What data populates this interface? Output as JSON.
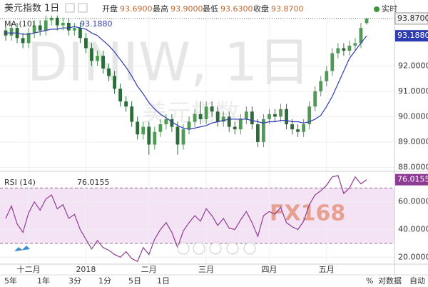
{
  "header": {
    "title": "美元指数",
    "interval": "1日",
    "open_label": "开盘",
    "open": "93.6900",
    "high_label": "最高",
    "high": "93.9000",
    "low_label": "最低",
    "low": "93.6300",
    "close_label": "收盘",
    "close": "93.8700",
    "realtime": "实时"
  },
  "watermark": {
    "symbol": "DINIW, 1日",
    "name": "美元指数",
    "logo": "FX168"
  },
  "chart_data": [
    {
      "type": "candlestick",
      "categories": [
        null,
        null,
        null,
        null,
        "十二月",
        null,
        null,
        null,
        null,
        null,
        null,
        null,
        null,
        null,
        "2018",
        null,
        null,
        null,
        null,
        null,
        null,
        null,
        null,
        null,
        null,
        "二月",
        null,
        null,
        null,
        null,
        null,
        null,
        null,
        null,
        null,
        "三月",
        null,
        null,
        null,
        null,
        null,
        null,
        null,
        null,
        null,
        null,
        "四月",
        null,
        null,
        null,
        null,
        null,
        null,
        null,
        null,
        null,
        "五月",
        null,
        null,
        null,
        null,
        null,
        null,
        null
      ],
      "open": [
        93.4,
        93.2,
        93.5,
        93.1,
        92.9,
        93.3,
        93.6,
        93.4,
        93.8,
        93.9,
        93.6,
        93.7,
        93.4,
        93.5,
        93.1,
        92.7,
        92.2,
        92.4,
        91.9,
        91.6,
        91.1,
        90.6,
        90.4,
        89.8,
        89.3,
        89.6,
        88.9,
        89.4,
        89.7,
        89.9,
        89.6,
        88.9,
        89.5,
        89.8,
        90.1,
        89.9,
        90.4,
        90.2,
        89.8,
        90.0,
        89.6,
        89.5,
        89.9,
        90.2,
        89.7,
        89.0,
        89.9,
        90.1,
        90.0,
        90.3,
        89.7,
        89.5,
        89.4,
        89.7,
        90.4,
        91.0,
        91.4,
        91.8,
        92.5,
        92.7,
        92.6,
        92.8,
        92.9,
        93.69
      ],
      "high": [
        93.6,
        93.7,
        93.7,
        93.3,
        93.5,
        93.8,
        93.8,
        94.0,
        94.1,
        94.1,
        93.9,
        93.9,
        93.7,
        93.7,
        93.3,
        92.9,
        92.6,
        92.6,
        92.1,
        91.8,
        91.3,
        90.8,
        90.6,
        90.0,
        89.8,
        89.8,
        89.6,
        89.9,
        90.1,
        90.1,
        89.8,
        89.7,
        90.0,
        90.3,
        90.6,
        90.6,
        90.6,
        90.4,
        90.2,
        90.2,
        89.8,
        90.1,
        90.4,
        90.4,
        89.9,
        90.1,
        90.3,
        90.3,
        90.5,
        90.5,
        89.9,
        89.7,
        89.9,
        90.6,
        91.2,
        91.6,
        92.0,
        92.7,
        92.9,
        92.9,
        93.0,
        93.1,
        93.7,
        93.9
      ],
      "low": [
        93.0,
        93.0,
        92.9,
        92.7,
        92.7,
        93.1,
        93.2,
        93.2,
        93.6,
        93.4,
        93.4,
        93.2,
        93.2,
        92.9,
        92.5,
        92.0,
        92.0,
        91.7,
        91.4,
        90.9,
        90.4,
        90.2,
        89.6,
        89.1,
        89.1,
        88.5,
        88.7,
        89.2,
        89.5,
        89.4,
        88.5,
        88.7,
        89.3,
        89.6,
        89.7,
        89.7,
        90.0,
        89.6,
        89.6,
        89.4,
        89.3,
        89.3,
        89.7,
        89.5,
        88.8,
        88.8,
        89.7,
        89.8,
        89.8,
        89.5,
        89.3,
        89.2,
        89.2,
        89.5,
        90.2,
        90.8,
        91.2,
        91.6,
        92.3,
        92.4,
        92.4,
        92.6,
        92.7,
        93.63
      ],
      "close": [
        93.2,
        93.5,
        93.1,
        92.9,
        93.3,
        93.6,
        93.4,
        93.8,
        93.9,
        93.6,
        93.7,
        93.4,
        93.5,
        93.1,
        92.7,
        92.2,
        92.4,
        91.9,
        91.6,
        91.1,
        90.6,
        90.4,
        89.8,
        89.3,
        89.6,
        88.9,
        89.4,
        89.7,
        89.9,
        89.6,
        88.9,
        89.5,
        89.8,
        90.1,
        89.9,
        90.4,
        90.2,
        89.8,
        90.0,
        89.6,
        89.5,
        89.9,
        90.2,
        89.7,
        89.0,
        89.9,
        90.1,
        90.0,
        90.3,
        89.7,
        89.5,
        89.4,
        89.7,
        90.4,
        91.0,
        91.4,
        91.8,
        92.5,
        92.7,
        92.6,
        92.8,
        92.9,
        93.5,
        93.87
      ],
      "up_color": "#4f9a55",
      "down_color": "#2d6b3a",
      "ylim": [
        87.9,
        94.6
      ],
      "yticks": [
        {
          "value": 88,
          "label": "88.0000"
        },
        {
          "value": 89,
          "label": "89.0000"
        },
        {
          "value": 90,
          "label": "90.0000"
        },
        {
          "value": 91,
          "label": "91.0000"
        },
        {
          "value": 92,
          "label": "92.0000"
        }
      ],
      "grid": true,
      "ma": {
        "name": "MA (10)",
        "color": "#2f3bb0",
        "value_label": "93.1880",
        "values": [
          93.3,
          93.3,
          93.3,
          93.25,
          93.25,
          93.3,
          93.35,
          93.4,
          93.45,
          93.45,
          93.5,
          93.5,
          93.55,
          93.5,
          93.45,
          93.3,
          93.2,
          93.0,
          92.8,
          92.55,
          92.25,
          91.95,
          91.6,
          91.2,
          90.9,
          90.55,
          90.3,
          90.1,
          89.95,
          89.8,
          89.65,
          89.55,
          89.5,
          89.55,
          89.6,
          89.65,
          89.75,
          89.8,
          89.85,
          89.9,
          89.9,
          89.9,
          89.9,
          89.85,
          89.8,
          89.75,
          89.8,
          89.8,
          89.85,
          89.85,
          89.8,
          89.8,
          89.75,
          89.8,
          89.9,
          90.05,
          90.4,
          90.8,
          91.3,
          91.8,
          92.3,
          92.6,
          92.9,
          93.188
        ]
      }
    },
    {
      "type": "line",
      "name": "RSI (14)",
      "color": "#8e3b94",
      "value_label": "76.0155",
      "values": [
        48,
        57,
        44,
        38,
        52,
        60,
        54,
        62,
        65,
        55,
        58,
        48,
        51,
        40,
        33,
        26,
        32,
        27,
        25,
        22,
        20,
        24,
        19,
        17,
        27,
        22,
        33,
        40,
        45,
        38,
        27,
        39,
        45,
        50,
        46,
        55,
        50,
        43,
        48,
        41,
        40,
        47,
        53,
        45,
        35,
        50,
        53,
        51,
        56,
        45,
        42,
        40,
        46,
        58,
        65,
        68,
        72,
        78,
        79,
        66,
        70,
        78,
        73,
        76.0155
      ],
      "ylim": [
        15,
        81
      ],
      "yticks": [
        {
          "value": 20,
          "label": "20.0000"
        },
        {
          "value": 40,
          "label": "40.0000"
        },
        {
          "value": 60,
          "label": "60.0000"
        }
      ],
      "band": [
        30,
        70
      ],
      "band_color": "#f4e3f4"
    }
  ],
  "toolbar": [
    "5年",
    "1年",
    "3分",
    "1分",
    "5日",
    "1日",
    "%",
    "对数据",
    "自动"
  ]
}
